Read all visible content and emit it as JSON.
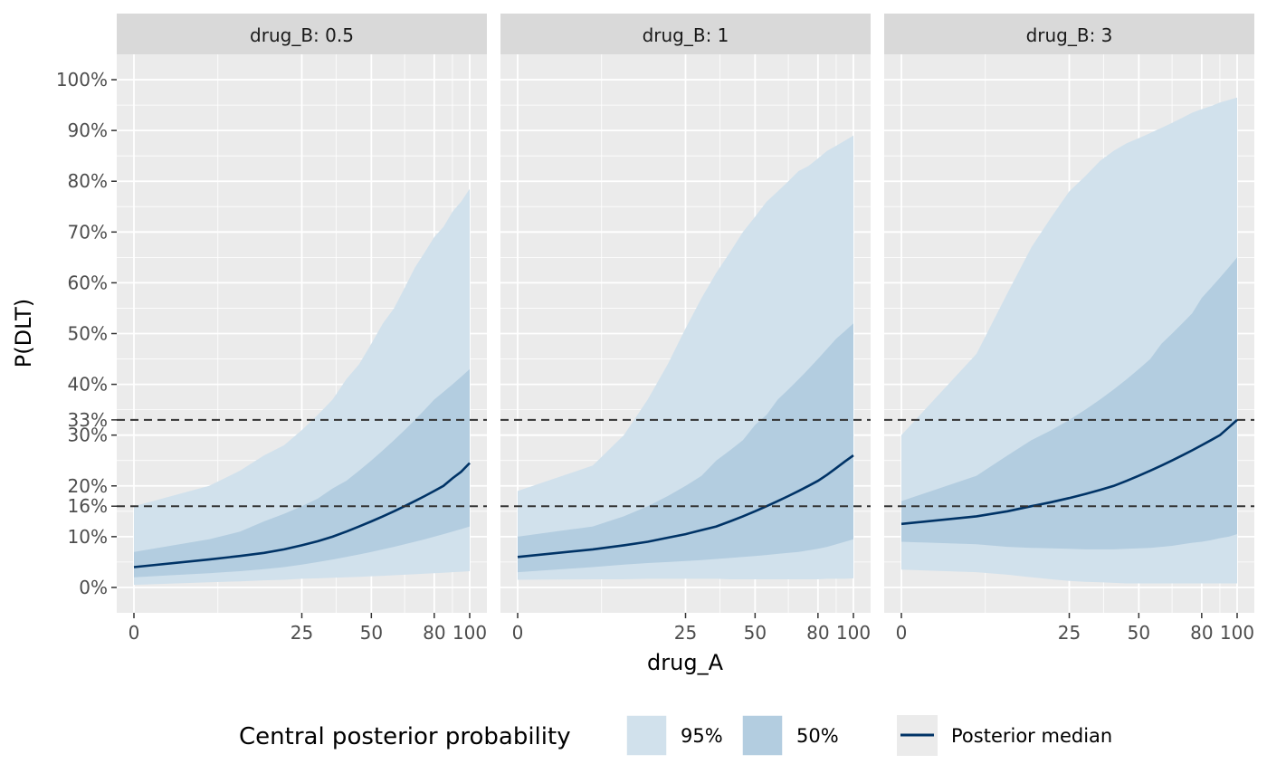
{
  "chart_data": {
    "type": "area",
    "xlabel": "drug_A",
    "ylabel": "P(DLT)",
    "x_ticks": [
      0,
      25,
      50,
      80,
      100
    ],
    "x_tick_labels": [
      "0",
      "25",
      "50",
      "80",
      "100"
    ],
    "x_scale": "sqrt",
    "xlim": [
      0,
      100
    ],
    "y_ticks": [
      0,
      0.1,
      0.16,
      0.2,
      0.3,
      0.33,
      0.4,
      0.5,
      0.6,
      0.7,
      0.8,
      0.9,
      1.0
    ],
    "y_tick_labels": [
      "0%",
      "10%",
      "16%",
      "20%",
      "30%",
      "33%",
      "40%",
      "50%",
      "60%",
      "70%",
      "80%",
      "90%",
      "100%"
    ],
    "ylim": [
      -0.05,
      1.05
    ],
    "reference_lines": [
      0.16,
      0.33
    ],
    "grid": true,
    "x": [
      0,
      5,
      10,
      15,
      20,
      25,
      30,
      35,
      40,
      45,
      50,
      55,
      60,
      65,
      70,
      75,
      80,
      85,
      90,
      95,
      100
    ],
    "panels": [
      {
        "strip": "drug_B: 0.5",
        "median": [
          0.04,
          0.055,
          0.062,
          0.068,
          0.075,
          0.083,
          0.091,
          0.1,
          0.11,
          0.12,
          0.13,
          0.14,
          0.15,
          0.16,
          0.17,
          0.18,
          0.19,
          0.2,
          0.215,
          0.228,
          0.245
        ],
        "q50_low": [
          0.02,
          0.028,
          0.032,
          0.036,
          0.04,
          0.045,
          0.05,
          0.055,
          0.06,
          0.065,
          0.07,
          0.075,
          0.08,
          0.085,
          0.09,
          0.095,
          0.1,
          0.105,
          0.11,
          0.115,
          0.12
        ],
        "q50_high": [
          0.07,
          0.095,
          0.11,
          0.13,
          0.145,
          0.16,
          0.175,
          0.195,
          0.21,
          0.23,
          0.25,
          0.27,
          0.29,
          0.31,
          0.33,
          0.35,
          0.37,
          0.385,
          0.4,
          0.415,
          0.43
        ],
        "q95_low": [
          0.005,
          0.01,
          0.012,
          0.014,
          0.015,
          0.017,
          0.018,
          0.019,
          0.02,
          0.021,
          0.022,
          0.023,
          0.024,
          0.025,
          0.026,
          0.027,
          0.028,
          0.029,
          0.03,
          0.031,
          0.032
        ],
        "q95_high": [
          0.16,
          0.2,
          0.23,
          0.26,
          0.28,
          0.31,
          0.34,
          0.37,
          0.41,
          0.44,
          0.48,
          0.52,
          0.55,
          0.59,
          0.63,
          0.66,
          0.69,
          0.71,
          0.74,
          0.76,
          0.785
        ]
      },
      {
        "strip": "drug_B: 1",
        "median": [
          0.06,
          0.075,
          0.083,
          0.09,
          0.098,
          0.105,
          0.113,
          0.12,
          0.13,
          0.14,
          0.15,
          0.16,
          0.17,
          0.18,
          0.19,
          0.2,
          0.21,
          0.222,
          0.235,
          0.248,
          0.26
        ],
        "q50_low": [
          0.03,
          0.04,
          0.045,
          0.048,
          0.05,
          0.052,
          0.054,
          0.056,
          0.058,
          0.06,
          0.062,
          0.064,
          0.066,
          0.068,
          0.07,
          0.073,
          0.076,
          0.08,
          0.085,
          0.09,
          0.095
        ],
        "q50_high": [
          0.1,
          0.12,
          0.14,
          0.16,
          0.18,
          0.2,
          0.22,
          0.25,
          0.27,
          0.29,
          0.32,
          0.34,
          0.37,
          0.39,
          0.41,
          0.43,
          0.45,
          0.47,
          0.49,
          0.505,
          0.52
        ],
        "q95_low": [
          0.015,
          0.016,
          0.016,
          0.017,
          0.017,
          0.017,
          0.017,
          0.017,
          0.016,
          0.016,
          0.016,
          0.016,
          0.016,
          0.016,
          0.016,
          0.016,
          0.016,
          0.017,
          0.017,
          0.017,
          0.018
        ],
        "q95_high": [
          0.19,
          0.24,
          0.3,
          0.37,
          0.44,
          0.51,
          0.57,
          0.62,
          0.66,
          0.7,
          0.73,
          0.76,
          0.78,
          0.8,
          0.82,
          0.83,
          0.845,
          0.86,
          0.87,
          0.88,
          0.89
        ]
      },
      {
        "strip": "drug_B: 3",
        "median": [
          0.125,
          0.14,
          0.15,
          0.16,
          0.168,
          0.176,
          0.184,
          0.192,
          0.2,
          0.21,
          0.22,
          0.23,
          0.24,
          0.25,
          0.26,
          0.27,
          0.28,
          0.29,
          0.3,
          0.315,
          0.33
        ],
        "q50_low": [
          0.09,
          0.085,
          0.08,
          0.078,
          0.077,
          0.076,
          0.075,
          0.075,
          0.075,
          0.076,
          0.077,
          0.078,
          0.08,
          0.082,
          0.085,
          0.088,
          0.09,
          0.093,
          0.097,
          0.1,
          0.105
        ],
        "q50_high": [
          0.17,
          0.22,
          0.26,
          0.29,
          0.31,
          0.33,
          0.35,
          0.37,
          0.39,
          0.41,
          0.43,
          0.45,
          0.48,
          0.5,
          0.52,
          0.54,
          0.57,
          0.59,
          0.61,
          0.63,
          0.65
        ],
        "q95_low": [
          0.035,
          0.03,
          0.025,
          0.02,
          0.016,
          0.013,
          0.011,
          0.01,
          0.009,
          0.008,
          0.008,
          0.008,
          0.008,
          0.008,
          0.008,
          0.008,
          0.008,
          0.008,
          0.008,
          0.008,
          0.008
        ],
        "q95_high": [
          0.3,
          0.46,
          0.58,
          0.67,
          0.73,
          0.78,
          0.81,
          0.84,
          0.86,
          0.875,
          0.885,
          0.895,
          0.905,
          0.915,
          0.925,
          0.935,
          0.942,
          0.948,
          0.955,
          0.96,
          0.965
        ]
      }
    ]
  },
  "legend": {
    "title": "Central posterior probability",
    "items": [
      {
        "label": "95%",
        "color": "#d1e1ec"
      },
      {
        "label": "50%",
        "color": "#b3cde0"
      }
    ],
    "line_label": "Posterior median",
    "line_color": "#003366"
  },
  "colors": {
    "panel_bg": "#ebebeb",
    "strip_bg": "#d9d9d9",
    "grid": "#ffffff",
    "ref_line": "#333333"
  }
}
